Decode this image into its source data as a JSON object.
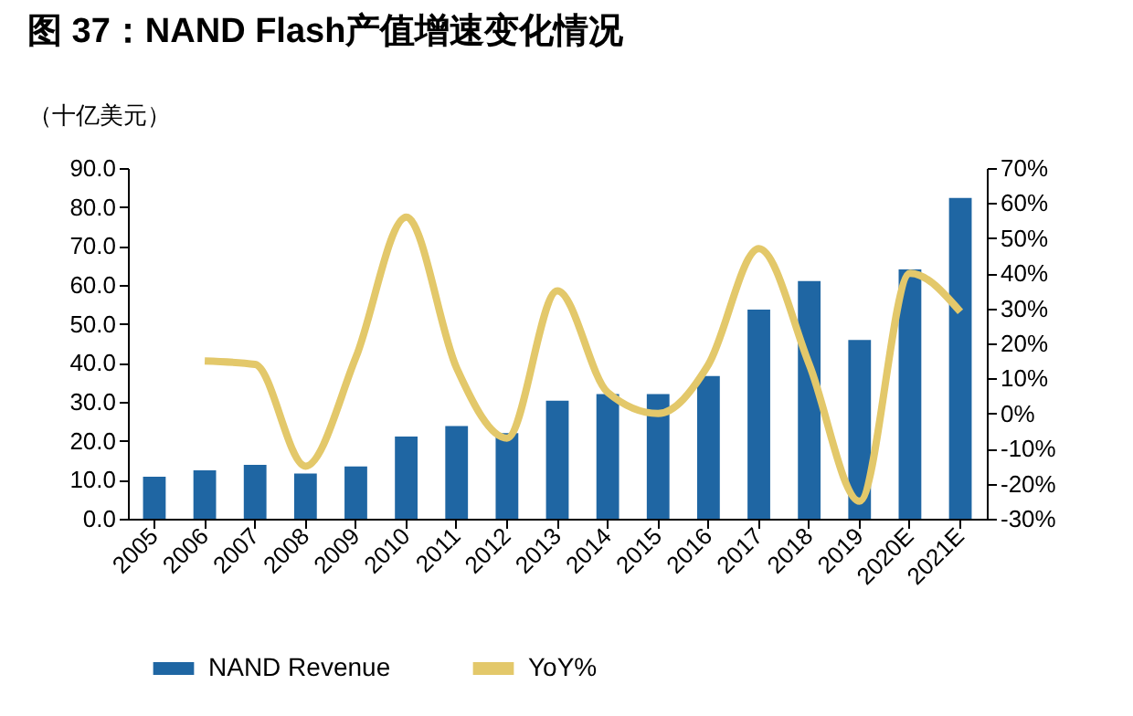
{
  "chart_data": {
    "type": "bar",
    "title": "图 37：NAND Flash产值增速变化情况",
    "ylabel": "（十亿美元）",
    "categories": [
      "2005",
      "2006",
      "2007",
      "2008",
      "2009",
      "2010",
      "2011",
      "2012",
      "2013",
      "2014",
      "2015",
      "2016",
      "2017",
      "2018",
      "2019",
      "2020E",
      "2021E"
    ],
    "series": [
      {
        "name": "NAND Revenue",
        "color": "#1f66a3",
        "values": [
          10.8,
          12.4,
          13.8,
          11.6,
          13.4,
          21.1,
          23.8,
          22.0,
          30.3,
          32.0,
          32.0,
          36.6,
          53.7,
          61.0,
          45.9,
          64.0,
          82.3
        ]
      },
      {
        "name": "YoY%",
        "type": "line",
        "axis": "y2",
        "color": "#e3c86a",
        "values": [
          null,
          15,
          14,
          -15,
          16,
          56,
          13,
          -7,
          35,
          6,
          0,
          14,
          47,
          14,
          -25,
          40,
          29
        ]
      }
    ],
    "ylim": [
      0,
      90
    ],
    "yticks": [
      {
        "value": 0,
        "label": "0.0"
      },
      {
        "value": 10,
        "label": "10.0"
      },
      {
        "value": 20,
        "label": "20.0"
      },
      {
        "value": 30,
        "label": "30.0"
      },
      {
        "value": 40,
        "label": "40.0"
      },
      {
        "value": 50,
        "label": "50.0"
      },
      {
        "value": 60,
        "label": "60.0"
      },
      {
        "value": 70,
        "label": "70.0"
      },
      {
        "value": 80,
        "label": "80.0"
      },
      {
        "value": 90,
        "label": "90.0"
      }
    ],
    "y2lim": [
      -30,
      70
    ],
    "y2ticks": [
      {
        "value": -30,
        "label": "-30%"
      },
      {
        "value": -20,
        "label": "-20%"
      },
      {
        "value": -10,
        "label": "-10%"
      },
      {
        "value": 0,
        "label": "0%"
      },
      {
        "value": 10,
        "label": "10%"
      },
      {
        "value": 20,
        "label": "20%"
      },
      {
        "value": 30,
        "label": "30%"
      },
      {
        "value": 40,
        "label": "40%"
      },
      {
        "value": 50,
        "label": "50%"
      },
      {
        "value": 60,
        "label": "60%"
      },
      {
        "value": 70,
        "label": "70%"
      }
    ],
    "grid": false,
    "legend": "bottom"
  }
}
